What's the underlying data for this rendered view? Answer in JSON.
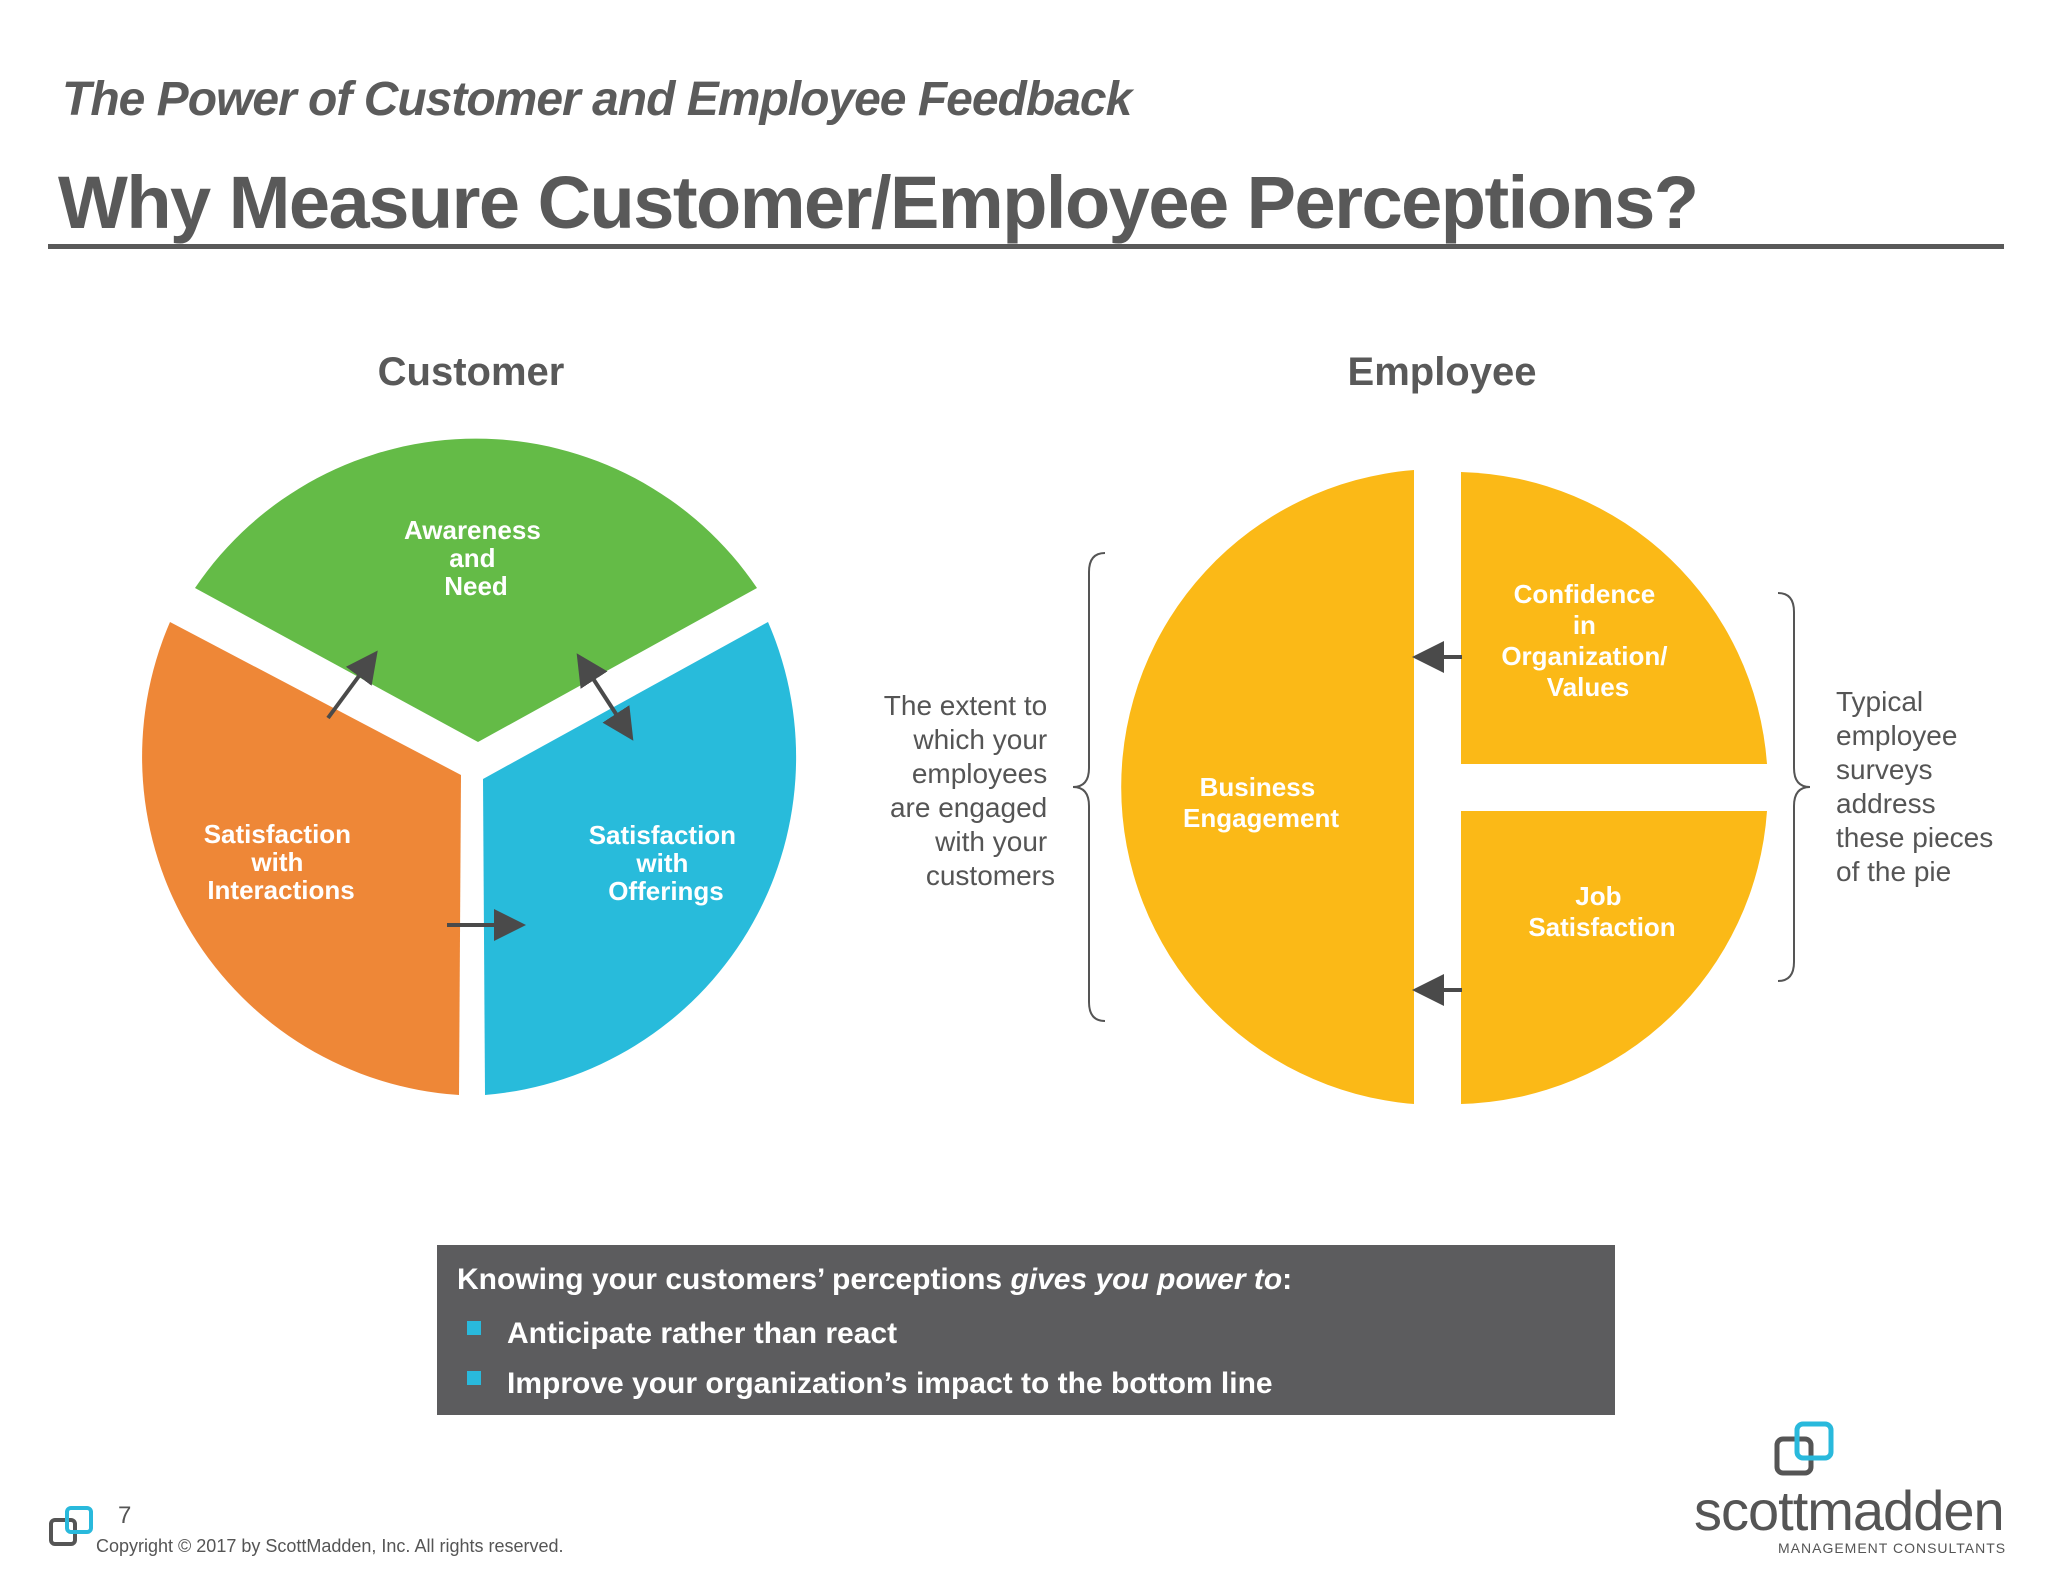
{
  "header": {
    "subtitle": "The Power of Customer and Employee Feedback",
    "title": "Why Measure Customer/Employee Perceptions?"
  },
  "customer": {
    "heading": "Customer",
    "segments": {
      "awareness": {
        "lines": [
          "Awareness",
          "and",
          "Need"
        ],
        "color": "#64bb47"
      },
      "interactions": {
        "lines": [
          "Satisfaction",
          "with",
          "Interactions"
        ],
        "color": "#ee8737"
      },
      "offerings": {
        "lines": [
          "Satisfaction",
          "with",
          "Offerings"
        ],
        "color": "#28bbdb"
      }
    }
  },
  "employee": {
    "heading": "Employee",
    "left_note": [
      "The extent to",
      "which your",
      "employees",
      "are engaged",
      "with your",
      "customers"
    ],
    "right_note": [
      "Typical",
      "employee",
      "surveys",
      "address",
      "these pieces",
      "of the pie"
    ],
    "segments": {
      "engagement": {
        "lines": [
          "Business",
          "Engagement"
        ]
      },
      "confidence": {
        "lines": [
          "Confidence",
          "in",
          "Organization/",
          "Values"
        ]
      },
      "job": {
        "lines": [
          "Job",
          "Satisfaction"
        ]
      }
    },
    "color": "#fbb917"
  },
  "callout": {
    "lead_start": "Knowing your customers’ perceptions ",
    "lead_emph": "gives you power to",
    "lead_end": ":",
    "bullets": [
      "Anticipate rather than react",
      "Improve your organization’s impact to the bottom line"
    ]
  },
  "footer": {
    "page_number": "7",
    "copyright": "Copyright © 2017 by ScottMadden, Inc. All rights reserved.",
    "brand_name": "scottmadden",
    "brand_tagline": "MANAGEMENT CONSULTANTS"
  }
}
